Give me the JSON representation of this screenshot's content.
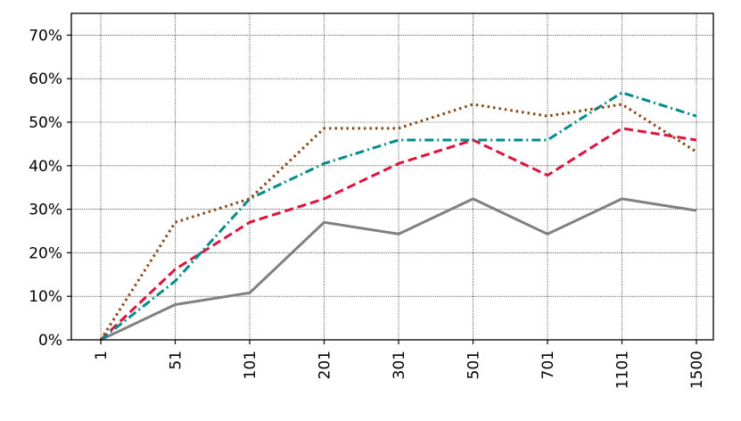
{
  "chart_data": {
    "type": "line",
    "title": "",
    "xlabel": "",
    "ylabel": "",
    "categories": [
      "1",
      "51",
      "101",
      "201",
      "301",
      "501",
      "701",
      "1101",
      "1500"
    ],
    "y_tick_labels": [
      "0%",
      "10%",
      "20%",
      "30%",
      "40%",
      "50%",
      "60%",
      "70%"
    ],
    "y_ticks": [
      0,
      10,
      20,
      30,
      40,
      50,
      60,
      70
    ],
    "ylim": [
      0,
      75
    ],
    "grid": true,
    "legend": "none",
    "series": [
      {
        "color": "#808080",
        "dash": "solid",
        "values": [
          0,
          8.1,
          10.8,
          27.0,
          24.3,
          32.4,
          24.3,
          32.4,
          29.7
        ]
      },
      {
        "color": "#dc143c",
        "dash": "dashed",
        "values": [
          0,
          16.2,
          27.0,
          32.4,
          40.5,
          45.9,
          37.8,
          48.6,
          45.9
        ]
      },
      {
        "color": "#008b8b",
        "dash": "dashdot",
        "values": [
          0,
          13.5,
          32.4,
          40.5,
          45.9,
          45.9,
          45.9,
          56.8,
          51.4
        ]
      },
      {
        "color": "#8b4513",
        "dash": "dotted",
        "values": [
          0,
          27.0,
          32.4,
          48.6,
          48.6,
          54.1,
          51.4,
          54.1,
          43.2
        ]
      }
    ]
  }
}
